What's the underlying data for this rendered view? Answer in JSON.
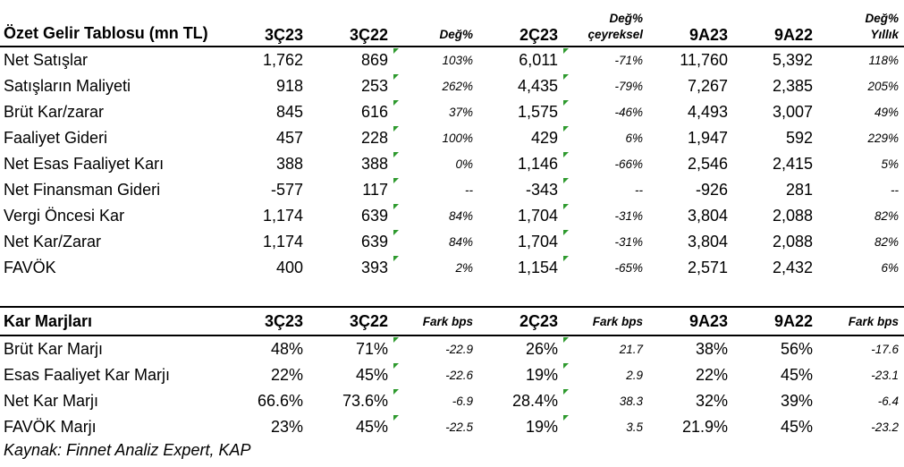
{
  "income_table": {
    "title": "Özet Gelir Tablosu (mn TL)",
    "headers": [
      "3Ç23",
      "3Ç22",
      "Değ%",
      "2Ç23",
      "Değ% çeyreksel",
      "9A23",
      "9A22",
      "Değ% Yıllık"
    ],
    "header_top": [
      "",
      "",
      "",
      "",
      "Değ%",
      "",
      "",
      "Değ%"
    ],
    "header_bottom": [
      "3Ç23",
      "3Ç22",
      "Değ%",
      "2Ç23",
      "çeyreksel",
      "9A23",
      "9A22",
      "Yıllık"
    ],
    "rows": [
      {
        "label": "Net Satışlar",
        "v": [
          "1,762",
          "869",
          "103%",
          "6,011",
          "-71%",
          "11,760",
          "5,392",
          "118%"
        ]
      },
      {
        "label": "Satışların Maliyeti",
        "v": [
          "918",
          "253",
          "262%",
          "4,435",
          "-79%",
          "7,267",
          "2,385",
          "205%"
        ]
      },
      {
        "label": "Brüt Kar/zarar",
        "v": [
          "845",
          "616",
          "37%",
          "1,575",
          "-46%",
          "4,493",
          "3,007",
          "49%"
        ]
      },
      {
        "label": "Faaliyet Gideri",
        "v": [
          "457",
          "228",
          "100%",
          "429",
          "6%",
          "1,947",
          "592",
          "229%"
        ]
      },
      {
        "label": "Net Esas Faaliyet Karı",
        "v": [
          "388",
          "388",
          "0%",
          "1,146",
          "-66%",
          "2,546",
          "2,415",
          "5%"
        ]
      },
      {
        "label": "Net Finansman Gideri",
        "v": [
          "-577",
          "117",
          "--",
          "-343",
          "--",
          "-926",
          "281",
          "--"
        ]
      },
      {
        "label": "Vergi Öncesi Kar",
        "v": [
          "1,174",
          "639",
          "84%",
          "1,704",
          "-31%",
          "3,804",
          "2,088",
          "82%"
        ]
      },
      {
        "label": "Net Kar/Zarar",
        "v": [
          "1,174",
          "639",
          "84%",
          "1,704",
          "-31%",
          "3,804",
          "2,088",
          "82%"
        ]
      },
      {
        "label": "FAVÖK",
        "v": [
          "400",
          "393",
          "2%",
          "1,154",
          "-65%",
          "2,571",
          "2,432",
          "6%"
        ]
      }
    ]
  },
  "margin_table": {
    "title": "Kar Marjları",
    "headers": [
      "3Ç23",
      "3Ç22",
      "Fark bps",
      "2Ç23",
      "Fark bps",
      "9A23",
      "9A22",
      "Fark bps"
    ],
    "rows": [
      {
        "label": "Brüt Kar Marjı",
        "v": [
          "48%",
          "71%",
          "-22.9",
          "26%",
          "21.7",
          "38%",
          "56%",
          "-17.6"
        ]
      },
      {
        "label": "Esas Faaliyet Kar Marjı",
        "v": [
          "22%",
          "45%",
          "-22.6",
          "19%",
          "2.9",
          "22%",
          "45%",
          "-23.1"
        ]
      },
      {
        "label": "Net Kar Marjı",
        "v": [
          "66.6%",
          "73.6%",
          "-6.9",
          "28.4%",
          "38.3",
          "32%",
          "39%",
          "-6.4"
        ]
      },
      {
        "label": "FAVÖK Marjı",
        "v": [
          "23%",
          "45%",
          "-22.5",
          "19%",
          "3.5",
          "21.9%",
          "45%",
          "-23.2"
        ]
      }
    ]
  },
  "source_note": "Kaynak: Finnet Analiz Expert, KAP",
  "colors": {
    "flag": "#2e9a2e",
    "rule": "#000000"
  }
}
